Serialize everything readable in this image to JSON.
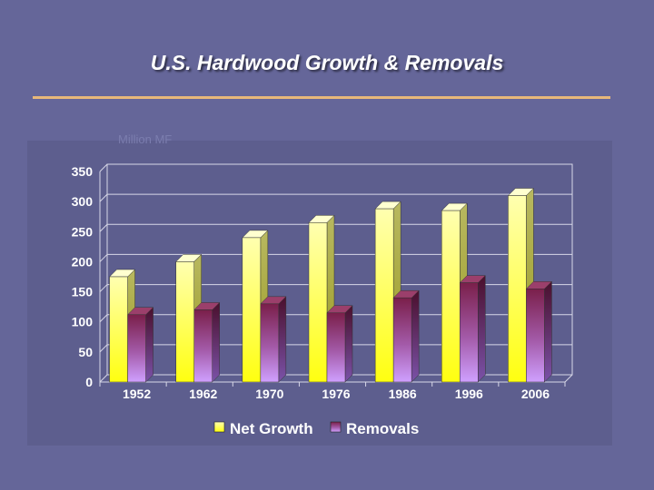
{
  "slide": {
    "title": "U.S. Hardwood Growth & Removals",
    "accent_rule_color": "#e8b87a",
    "background_color": "#656699"
  },
  "chart_data": {
    "type": "bar",
    "title": "",
    "ylabel": "Million MF",
    "xlabel": "",
    "categories": [
      "1952",
      "1962",
      "1970",
      "1976",
      "1986",
      "1996",
      "2006"
    ],
    "series": [
      {
        "name": "Net Growth",
        "values": [
          175,
          200,
          240,
          265,
          288,
          285,
          310
        ],
        "color": "#ffff40"
      },
      {
        "name": "Removals",
        "values": [
          112,
          120,
          130,
          115,
          140,
          165,
          155
        ],
        "color": "#8b2a5a"
      }
    ],
    "ylim": [
      0,
      350
    ],
    "yticks": [
      0,
      50,
      100,
      150,
      200,
      250,
      300,
      350
    ],
    "grid": true,
    "legend_position": "bottom"
  }
}
